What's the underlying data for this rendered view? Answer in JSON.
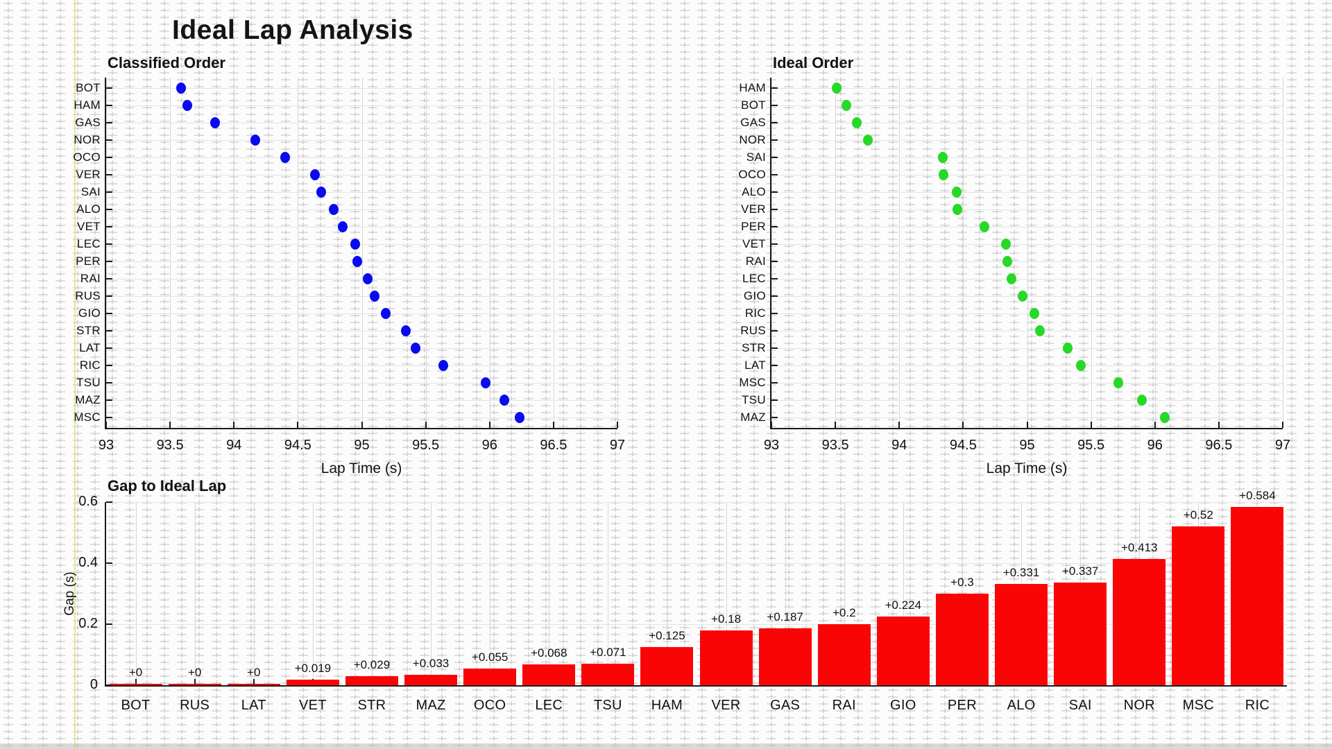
{
  "title": "Ideal Lap Analysis",
  "colors": {
    "classified_marker": "#0a0af0",
    "ideal_marker": "#26d926",
    "gap_bar": "#fa0505",
    "grid": "#d6d6d6",
    "row_grid": "#e4e4e4",
    "spine": "#1a1a1a",
    "text": "#111111"
  },
  "chart_data": [
    {
      "type": "scatter",
      "title": "Classified Order",
      "xlabel": "Lap Time (s)",
      "xlim": [
        93,
        97
      ],
      "xticks": [
        93,
        93.5,
        94,
        94.5,
        95,
        95.5,
        96,
        96.5,
        97
      ],
      "xtick_labels": [
        "93",
        "93.5",
        "94",
        "94.5",
        "95",
        "95.5",
        "96",
        "96.5",
        "97"
      ],
      "grid": true,
      "marker_color": "#0a0af0",
      "points": [
        {
          "driver": "BOT",
          "time": 93.587
        },
        {
          "driver": "HAM",
          "time": 93.633
        },
        {
          "driver": "GAS",
          "time": 93.853
        },
        {
          "driver": "NOR",
          "time": 94.167
        },
        {
          "driver": "OCO",
          "time": 94.4
        },
        {
          "driver": "VER",
          "time": 94.633
        },
        {
          "driver": "SAI",
          "time": 94.68
        },
        {
          "driver": "ALO",
          "time": 94.78
        },
        {
          "driver": "VET",
          "time": 94.853
        },
        {
          "driver": "LEC",
          "time": 94.947
        },
        {
          "driver": "PER",
          "time": 94.967
        },
        {
          "driver": "RAI",
          "time": 95.047
        },
        {
          "driver": "RUS",
          "time": 95.1
        },
        {
          "driver": "GIO",
          "time": 95.187
        },
        {
          "driver": "STR",
          "time": 95.347
        },
        {
          "driver": "LAT",
          "time": 95.42
        },
        {
          "driver": "RIC",
          "time": 95.64
        },
        {
          "driver": "TSU",
          "time": 95.967
        },
        {
          "driver": "MAZ",
          "time": 96.113
        },
        {
          "driver": "MSC",
          "time": 96.233
        }
      ]
    },
    {
      "type": "scatter",
      "title": "Ideal Order",
      "xlabel": "Lap Time (s)",
      "xlim": [
        93,
        97
      ],
      "xticks": [
        93,
        93.5,
        94,
        94.5,
        95,
        95.5,
        96,
        96.5,
        97
      ],
      "xtick_labels": [
        "93",
        "93.5",
        "94",
        "94.5",
        "95",
        "95.5",
        "96",
        "96.5",
        "97"
      ],
      "grid": true,
      "marker_color": "#26d926",
      "points": [
        {
          "driver": "HAM",
          "time": 93.508
        },
        {
          "driver": "BOT",
          "time": 93.587
        },
        {
          "driver": "GAS",
          "time": 93.666
        },
        {
          "driver": "NOR",
          "time": 93.754
        },
        {
          "driver": "SAI",
          "time": 94.343
        },
        {
          "driver": "OCO",
          "time": 94.345
        },
        {
          "driver": "ALO",
          "time": 94.449
        },
        {
          "driver": "VER",
          "time": 94.453
        },
        {
          "driver": "PER",
          "time": 94.667
        },
        {
          "driver": "VET",
          "time": 94.834
        },
        {
          "driver": "RAI",
          "time": 94.847
        },
        {
          "driver": "LEC",
          "time": 94.879
        },
        {
          "driver": "GIO",
          "time": 94.963
        },
        {
          "driver": "RIC",
          "time": 95.056
        },
        {
          "driver": "RUS",
          "time": 95.1
        },
        {
          "driver": "STR",
          "time": 95.318
        },
        {
          "driver": "LAT",
          "time": 95.42
        },
        {
          "driver": "MSC",
          "time": 95.713
        },
        {
          "driver": "TSU",
          "time": 95.896
        },
        {
          "driver": "MAZ",
          "time": 96.08
        }
      ]
    },
    {
      "type": "bar",
      "title": "Gap to Ideal Lap",
      "ylabel": "Gap (s)",
      "ylim": [
        0,
        0.6
      ],
      "yticks": [
        0,
        0.2,
        0.4,
        0.6
      ],
      "ytick_labels": [
        "0",
        "0.2",
        "0.4",
        "0.6"
      ],
      "grid": true,
      "bar_color": "#fa0505",
      "categories": [
        "BOT",
        "RUS",
        "LAT",
        "VET",
        "STR",
        "MAZ",
        "OCO",
        "LEC",
        "TSU",
        "HAM",
        "VER",
        "GAS",
        "RAI",
        "GIO",
        "PER",
        "ALO",
        "SAI",
        "NOR",
        "MSC",
        "RIC"
      ],
      "values": [
        0,
        0,
        0,
        0.019,
        0.029,
        0.033,
        0.055,
        0.068,
        0.071,
        0.125,
        0.18,
        0.187,
        0.2,
        0.224,
        0.3,
        0.331,
        0.337,
        0.413,
        0.52,
        0.584
      ],
      "bar_labels": [
        "+0",
        "+0",
        "+0",
        "+0.019",
        "+0.029",
        "+0.033",
        "+0.055",
        "+0.068",
        "+0.071",
        "+0.125",
        "+0.18",
        "+0.187",
        "+0.2",
        "+0.224",
        "+0.3",
        "+0.331",
        "+0.337",
        "+0.413",
        "+0.52",
        "+0.584"
      ]
    }
  ]
}
